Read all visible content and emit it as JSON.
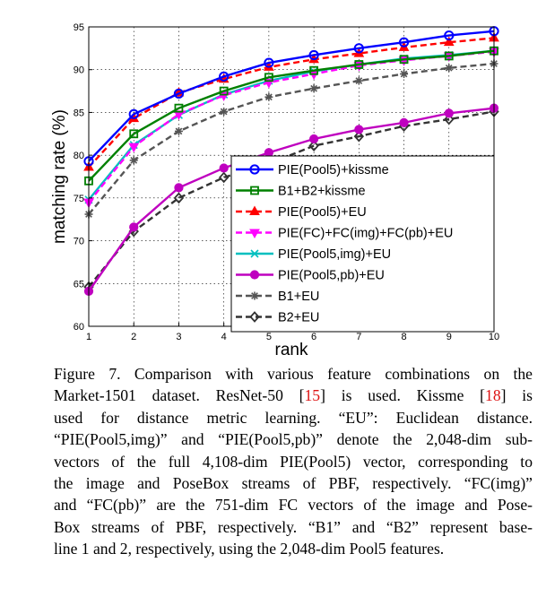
{
  "chart_data": {
    "type": "line",
    "title": "",
    "xlabel": "rank",
    "ylabel": "matching rate (%)",
    "xlim": [
      1,
      10
    ],
    "ylim": [
      60,
      95
    ],
    "xticks": [
      1,
      2,
      3,
      4,
      5,
      6,
      7,
      8,
      9,
      10
    ],
    "yticks": [
      60,
      65,
      70,
      75,
      80,
      85,
      90,
      95
    ],
    "legend_position": "center-right",
    "grid": true,
    "x": [
      1,
      2,
      3,
      4,
      5,
      6,
      7,
      8,
      9,
      10
    ],
    "series": [
      {
        "name": "PIE(Pool5)+kissme",
        "color": "#0000ff",
        "dash": "solid",
        "marker": "circle-open",
        "values": [
          79.3,
          84.8,
          87.2,
          89.2,
          90.8,
          91.7,
          92.5,
          93.2,
          94.0,
          94.5
        ]
      },
      {
        "name": "B1+B2+kissme",
        "color": "#008000",
        "dash": "solid",
        "marker": "square-open",
        "values": [
          77.0,
          82.5,
          85.5,
          87.5,
          89.1,
          89.9,
          90.6,
          91.2,
          91.6,
          92.2
        ]
      },
      {
        "name": "PIE(Pool5)+EU",
        "color": "#ff0000",
        "dash": "dashed",
        "marker": "triangle",
        "values": [
          78.6,
          84.3,
          87.3,
          88.9,
          90.3,
          91.2,
          91.9,
          92.6,
          93.2,
          93.7
        ]
      },
      {
        "name": "PIE(FC)+FC(img)+FC(pb)+EU",
        "color": "#ff00ff",
        "dash": "dashed",
        "marker": "triangle-down",
        "values": [
          74.5,
          81.0,
          84.8,
          87.0,
          88.5,
          89.5,
          90.5,
          91.1,
          91.6,
          92.1
        ]
      },
      {
        "name": "PIE(Pool5,img)+EU",
        "color": "#00bfbf",
        "dash": "solid",
        "marker": "x",
        "values": [
          74.8,
          81.2,
          84.7,
          87.1,
          88.7,
          89.8,
          90.6,
          91.3,
          91.7,
          92.2
        ]
      },
      {
        "name": "PIE(Pool5,pb)+EU",
        "color": "#bf00bf",
        "dash": "solid",
        "marker": "circle-filled",
        "values": [
          64.1,
          71.6,
          76.2,
          78.5,
          80.3,
          81.9,
          83.0,
          83.8,
          84.9,
          85.5
        ]
      },
      {
        "name": "B1+EU",
        "color": "#555555",
        "dash": "dashed",
        "marker": "asterisk",
        "values": [
          73.1,
          79.4,
          82.8,
          85.1,
          86.8,
          87.8,
          88.7,
          89.5,
          90.2,
          90.7
        ]
      },
      {
        "name": "B2+EU",
        "color": "#333333",
        "dash": "dashed",
        "marker": "diamond-open",
        "values": [
          64.6,
          71.1,
          75.0,
          77.4,
          79.0,
          81.1,
          82.2,
          83.4,
          84.2,
          85.1
        ]
      }
    ]
  },
  "caption": {
    "lines": [
      [
        {
          "t": "Figure 7. Comparison with various feature combinations on the"
        }
      ],
      [
        {
          "t": "Market-1501 dataset.  ResNet-50 ["
        },
        {
          "t": "15",
          "cite": true
        },
        {
          "t": "] is used.  Kissme ["
        },
        {
          "t": "18",
          "cite": true
        },
        {
          "t": "] is"
        }
      ],
      [
        {
          "t": "used for distance metric learning.   “EU”: Euclidean distance."
        }
      ],
      [
        {
          "t": "“PIE(Pool5,img)” and “PIE(Pool5,pb)” denote the 2,048-dim sub-"
        }
      ],
      [
        {
          "t": "vectors of the full 4,108-dim PIE(Pool5) vector, corresponding to"
        }
      ],
      [
        {
          "t": "the image and PoseBox streams of PBF, respectively. “FC(img)”"
        }
      ],
      [
        {
          "t": "and “FC(pb)” are the 751-dim FC vectors of the image and Pose-"
        }
      ],
      [
        {
          "t": "Box streams of PBF, respectively. “B1” and “B2” represent base-"
        }
      ],
      [
        {
          "t": "line 1 and 2, respectively, using the 2,048-dim Pool5 features."
        }
      ]
    ]
  }
}
